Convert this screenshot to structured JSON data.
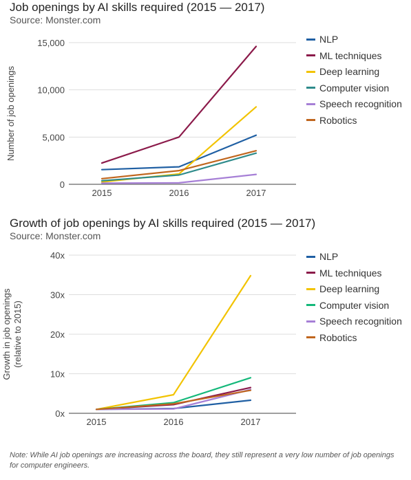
{
  "chart_data": [
    {
      "type": "line",
      "title": "Job openings by AI skills required (2015 — 2017)",
      "subtitle": "Source: Monster.com",
      "xlabel": "",
      "ylabel": "Number of job openings",
      "x": [
        "2015",
        "2016",
        "2017"
      ],
      "ylim": [
        0,
        15000
      ],
      "yticks": [
        "0",
        "5,000",
        "10,000",
        "15,000"
      ],
      "grid": true,
      "legend_position": "right",
      "series": [
        {
          "name": "NLP",
          "color": "#1f5fa3",
          "values": [
            1550,
            1850,
            5200
          ]
        },
        {
          "name": "ML techniques",
          "color": "#8b1a4a",
          "values": [
            2250,
            5000,
            14600
          ]
        },
        {
          "name": "Deep learning",
          "color": "#f2c300",
          "values": [
            250,
            1100,
            8200
          ]
        },
        {
          "name": "Computer vision",
          "color": "#2e8b8b",
          "values": [
            380,
            980,
            3300
          ]
        },
        {
          "name": "Speech recognition",
          "color": "#a67fd6",
          "values": [
            120,
            150,
            1050
          ]
        },
        {
          "name": "Robotics",
          "color": "#c0661e",
          "values": [
            600,
            1450,
            3550
          ]
        }
      ]
    },
    {
      "type": "line",
      "title": "Growth of job openings by AI skills required (2015 — 2017)",
      "subtitle": "Source: Monster.com",
      "xlabel": "",
      "ylabel": "Growth in job openings (relative to 2015)",
      "ylabel_lines": [
        "Growth in job openings",
        "(relative to 2015)"
      ],
      "x": [
        "2015",
        "2016",
        "2017"
      ],
      "ylim": [
        0,
        40
      ],
      "yticks": [
        "0x",
        "10x",
        "20x",
        "30x",
        "40x"
      ],
      "grid": true,
      "legend_position": "right",
      "series": [
        {
          "name": "NLP",
          "color": "#1f5fa3",
          "values": [
            1,
            1.2,
            3.3
          ]
        },
        {
          "name": "ML techniques",
          "color": "#8b1a4a",
          "values": [
            1,
            2.2,
            6.5
          ]
        },
        {
          "name": "Deep learning",
          "color": "#f2c300",
          "values": [
            1,
            4.7,
            34.8
          ]
        },
        {
          "name": "Computer vision",
          "color": "#14b87a",
          "values": [
            1,
            2.7,
            9.0
          ]
        },
        {
          "name": "Speech recognition",
          "color": "#a67fd6",
          "values": [
            1,
            1.1,
            6.0
          ]
        },
        {
          "name": "Robotics",
          "color": "#c0661e",
          "values": [
            1,
            2.4,
            5.8
          ]
        }
      ]
    }
  ],
  "note": "Note: While AI job openings are increasing across the board, they still represent a very low number of job openings for computer engineers."
}
